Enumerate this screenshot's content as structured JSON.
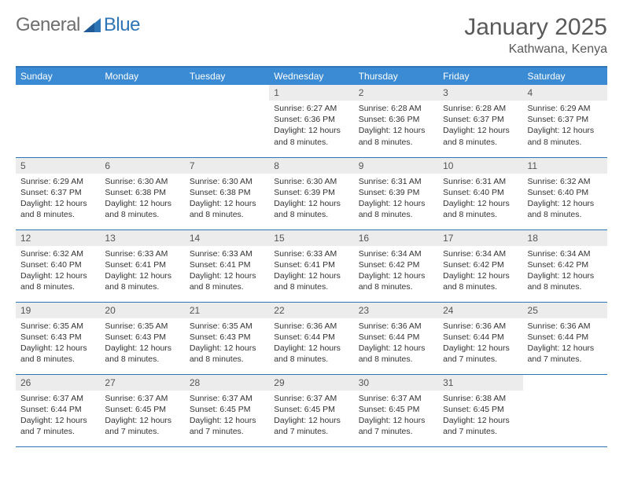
{
  "brand": {
    "name1": "General",
    "name2": "Blue"
  },
  "title": "January 2025",
  "location": "Kathwana, Kenya",
  "dow": [
    "Sunday",
    "Monday",
    "Tuesday",
    "Wednesday",
    "Thursday",
    "Friday",
    "Saturday"
  ],
  "colors": {
    "header_bg": "#3b8bd4",
    "header_border": "#2e75b6",
    "row_divider": "#2e75b6",
    "daynum_bg": "#ececec",
    "text": "#333333",
    "title_text": "#5a5a5a",
    "logo_gray": "#6e6e6e",
    "logo_blue": "#2e75b6",
    "white": "#ffffff"
  },
  "fonts": {
    "title_size_pt": 22,
    "location_size_pt": 12,
    "dow_size_pt": 9,
    "body_size_pt": 8
  },
  "weeks": [
    [
      {
        "n": "",
        "sr": "",
        "ss": "",
        "dl": ""
      },
      {
        "n": "",
        "sr": "",
        "ss": "",
        "dl": ""
      },
      {
        "n": "",
        "sr": "",
        "ss": "",
        "dl": ""
      },
      {
        "n": "1",
        "sr": "Sunrise: 6:27 AM",
        "ss": "Sunset: 6:36 PM",
        "dl": "Daylight: 12 hours and 8 minutes."
      },
      {
        "n": "2",
        "sr": "Sunrise: 6:28 AM",
        "ss": "Sunset: 6:36 PM",
        "dl": "Daylight: 12 hours and 8 minutes."
      },
      {
        "n": "3",
        "sr": "Sunrise: 6:28 AM",
        "ss": "Sunset: 6:37 PM",
        "dl": "Daylight: 12 hours and 8 minutes."
      },
      {
        "n": "4",
        "sr": "Sunrise: 6:29 AM",
        "ss": "Sunset: 6:37 PM",
        "dl": "Daylight: 12 hours and 8 minutes."
      }
    ],
    [
      {
        "n": "5",
        "sr": "Sunrise: 6:29 AM",
        "ss": "Sunset: 6:37 PM",
        "dl": "Daylight: 12 hours and 8 minutes."
      },
      {
        "n": "6",
        "sr": "Sunrise: 6:30 AM",
        "ss": "Sunset: 6:38 PM",
        "dl": "Daylight: 12 hours and 8 minutes."
      },
      {
        "n": "7",
        "sr": "Sunrise: 6:30 AM",
        "ss": "Sunset: 6:38 PM",
        "dl": "Daylight: 12 hours and 8 minutes."
      },
      {
        "n": "8",
        "sr": "Sunrise: 6:30 AM",
        "ss": "Sunset: 6:39 PM",
        "dl": "Daylight: 12 hours and 8 minutes."
      },
      {
        "n": "9",
        "sr": "Sunrise: 6:31 AM",
        "ss": "Sunset: 6:39 PM",
        "dl": "Daylight: 12 hours and 8 minutes."
      },
      {
        "n": "10",
        "sr": "Sunrise: 6:31 AM",
        "ss": "Sunset: 6:40 PM",
        "dl": "Daylight: 12 hours and 8 minutes."
      },
      {
        "n": "11",
        "sr": "Sunrise: 6:32 AM",
        "ss": "Sunset: 6:40 PM",
        "dl": "Daylight: 12 hours and 8 minutes."
      }
    ],
    [
      {
        "n": "12",
        "sr": "Sunrise: 6:32 AM",
        "ss": "Sunset: 6:40 PM",
        "dl": "Daylight: 12 hours and 8 minutes."
      },
      {
        "n": "13",
        "sr": "Sunrise: 6:33 AM",
        "ss": "Sunset: 6:41 PM",
        "dl": "Daylight: 12 hours and 8 minutes."
      },
      {
        "n": "14",
        "sr": "Sunrise: 6:33 AM",
        "ss": "Sunset: 6:41 PM",
        "dl": "Daylight: 12 hours and 8 minutes."
      },
      {
        "n": "15",
        "sr": "Sunrise: 6:33 AM",
        "ss": "Sunset: 6:41 PM",
        "dl": "Daylight: 12 hours and 8 minutes."
      },
      {
        "n": "16",
        "sr": "Sunrise: 6:34 AM",
        "ss": "Sunset: 6:42 PM",
        "dl": "Daylight: 12 hours and 8 minutes."
      },
      {
        "n": "17",
        "sr": "Sunrise: 6:34 AM",
        "ss": "Sunset: 6:42 PM",
        "dl": "Daylight: 12 hours and 8 minutes."
      },
      {
        "n": "18",
        "sr": "Sunrise: 6:34 AM",
        "ss": "Sunset: 6:42 PM",
        "dl": "Daylight: 12 hours and 8 minutes."
      }
    ],
    [
      {
        "n": "19",
        "sr": "Sunrise: 6:35 AM",
        "ss": "Sunset: 6:43 PM",
        "dl": "Daylight: 12 hours and 8 minutes."
      },
      {
        "n": "20",
        "sr": "Sunrise: 6:35 AM",
        "ss": "Sunset: 6:43 PM",
        "dl": "Daylight: 12 hours and 8 minutes."
      },
      {
        "n": "21",
        "sr": "Sunrise: 6:35 AM",
        "ss": "Sunset: 6:43 PM",
        "dl": "Daylight: 12 hours and 8 minutes."
      },
      {
        "n": "22",
        "sr": "Sunrise: 6:36 AM",
        "ss": "Sunset: 6:44 PM",
        "dl": "Daylight: 12 hours and 8 minutes."
      },
      {
        "n": "23",
        "sr": "Sunrise: 6:36 AM",
        "ss": "Sunset: 6:44 PM",
        "dl": "Daylight: 12 hours and 8 minutes."
      },
      {
        "n": "24",
        "sr": "Sunrise: 6:36 AM",
        "ss": "Sunset: 6:44 PM",
        "dl": "Daylight: 12 hours and 7 minutes."
      },
      {
        "n": "25",
        "sr": "Sunrise: 6:36 AM",
        "ss": "Sunset: 6:44 PM",
        "dl": "Daylight: 12 hours and 7 minutes."
      }
    ],
    [
      {
        "n": "26",
        "sr": "Sunrise: 6:37 AM",
        "ss": "Sunset: 6:44 PM",
        "dl": "Daylight: 12 hours and 7 minutes."
      },
      {
        "n": "27",
        "sr": "Sunrise: 6:37 AM",
        "ss": "Sunset: 6:45 PM",
        "dl": "Daylight: 12 hours and 7 minutes."
      },
      {
        "n": "28",
        "sr": "Sunrise: 6:37 AM",
        "ss": "Sunset: 6:45 PM",
        "dl": "Daylight: 12 hours and 7 minutes."
      },
      {
        "n": "29",
        "sr": "Sunrise: 6:37 AM",
        "ss": "Sunset: 6:45 PM",
        "dl": "Daylight: 12 hours and 7 minutes."
      },
      {
        "n": "30",
        "sr": "Sunrise: 6:37 AM",
        "ss": "Sunset: 6:45 PM",
        "dl": "Daylight: 12 hours and 7 minutes."
      },
      {
        "n": "31",
        "sr": "Sunrise: 6:38 AM",
        "ss": "Sunset: 6:45 PM",
        "dl": "Daylight: 12 hours and 7 minutes."
      },
      {
        "n": "",
        "sr": "",
        "ss": "",
        "dl": ""
      }
    ]
  ]
}
